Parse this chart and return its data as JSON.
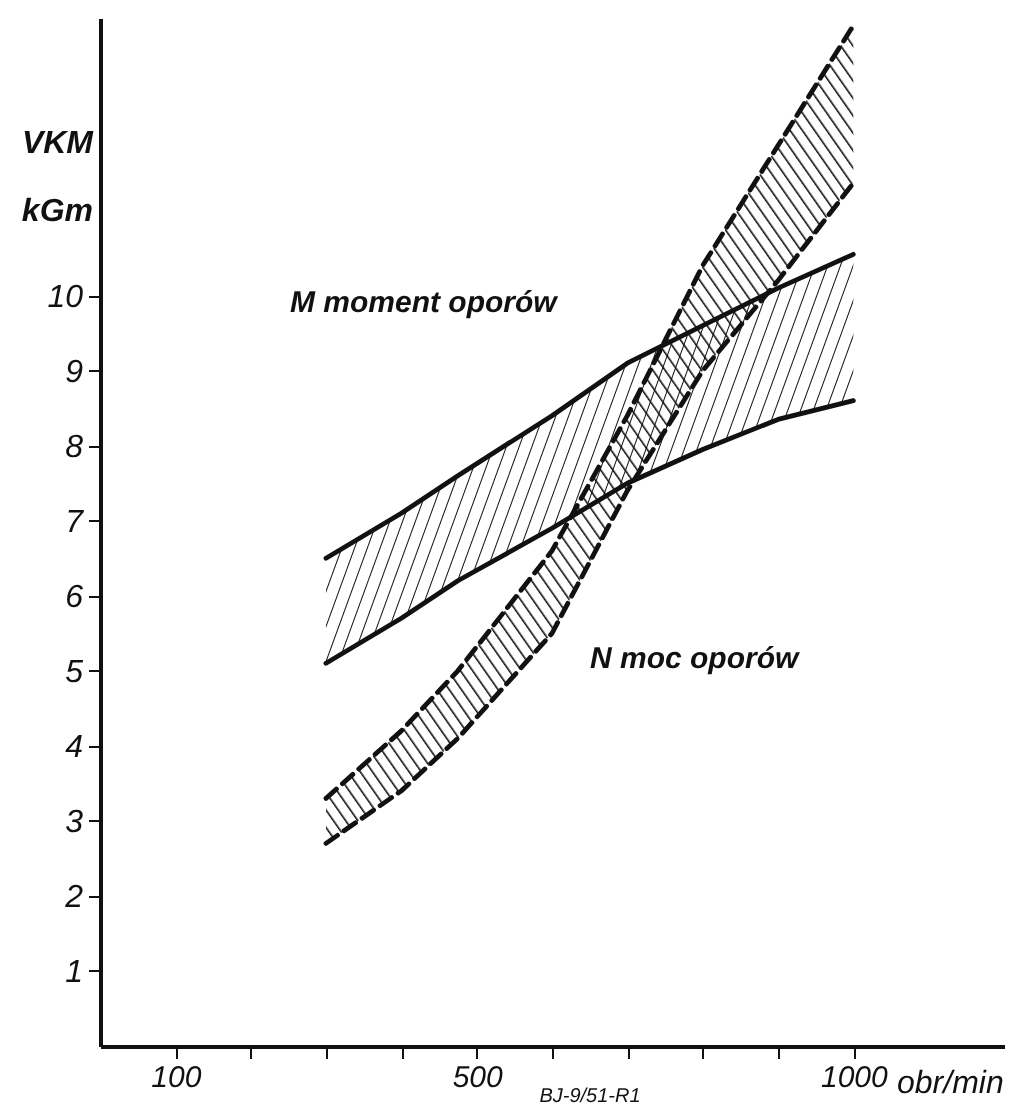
{
  "chart_data": {
    "type": "line",
    "xlabel": "obr/min",
    "ylabel": "VKM kGm",
    "x": [
      300,
      400,
      475,
      600,
      700,
      800,
      900,
      1000
    ],
    "series": [
      {
        "name": "M moment oporów",
        "color": "#111111",
        "line_style": "solid",
        "values": [
          6.5,
          7.1,
          7.6,
          8.4,
          9.1,
          9.6,
          10.1,
          10.55
        ]
      },
      {
        "color": "#111111",
        "line_style": "solid",
        "values": [
          5.1,
          5.7,
          6.2,
          6.9,
          7.5,
          7.95,
          8.35,
          8.6
        ]
      },
      {
        "name": "N moc oporów",
        "color": "#111111",
        "line_style": "dashed",
        "values": [
          3.3,
          4.2,
          5.0,
          6.6,
          8.4,
          10.4,
          12.0,
          13.6
        ]
      },
      {
        "color": "#111111",
        "line_style": "dashed",
        "values": [
          2.7,
          3.4,
          4.1,
          5.5,
          7.4,
          9.0,
          10.2,
          11.5
        ]
      }
    ],
    "xlim": [
      0,
      1200
    ],
    "xticks": [
      {
        "value": 100,
        "label": "100"
      },
      {
        "value": 200,
        "label": null
      },
      {
        "value": 300,
        "label": null
      },
      {
        "value": 400,
        "label": null
      },
      {
        "value": 500,
        "label": "500"
      },
      {
        "value": 600,
        "label": null
      },
      {
        "value": 700,
        "label": null
      },
      {
        "value": 800,
        "label": null
      },
      {
        "value": 900,
        "label": null
      },
      {
        "value": 1000,
        "label": "1000"
      }
    ],
    "ylim": [
      0,
      13.7
    ],
    "yticks": [
      1,
      2,
      3,
      4,
      5,
      6,
      7,
      8,
      9,
      10
    ],
    "grid": false,
    "annotations": [
      "BJ-9/51-R1"
    ]
  }
}
